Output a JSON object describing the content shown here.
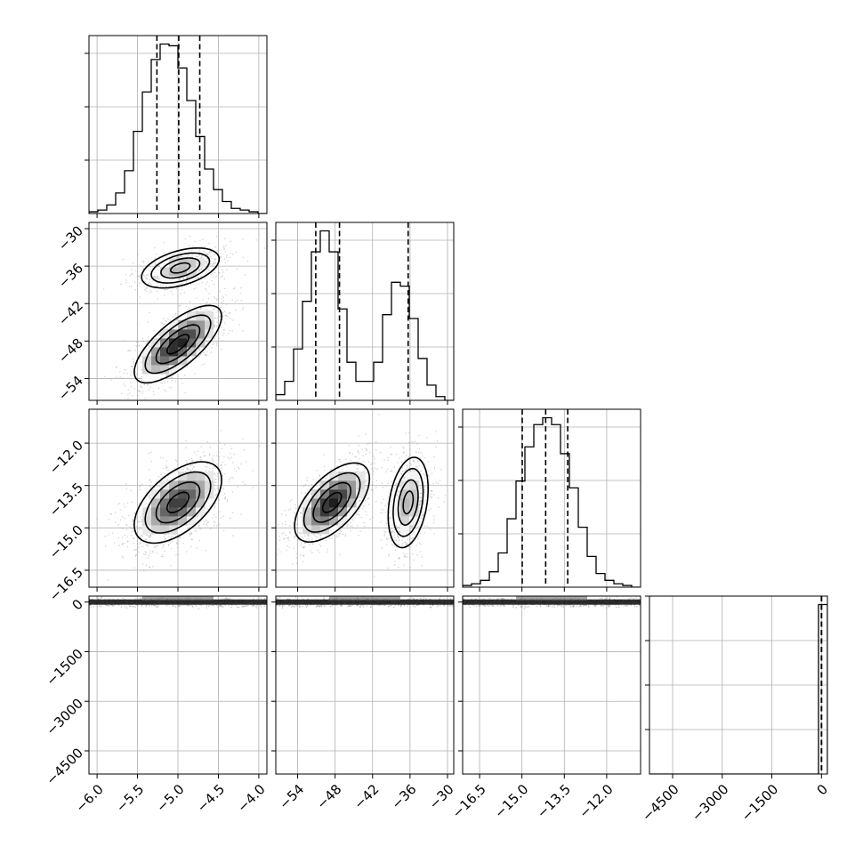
{
  "chart_data": {
    "type": "corner",
    "grid": true,
    "axes_ranges": {
      "p0": [
        -6.1,
        -3.9
      ],
      "p1": [
        -57.5,
        -29.0
      ],
      "p2": [
        -17.1,
        -10.8
      ],
      "p3": [
        -5200,
        180
      ]
    },
    "x_tick_labels": {
      "p0": [
        "−6.0",
        "−5.5",
        "−5.0",
        "−4.5",
        "−4.0"
      ],
      "p1": [
        "−54",
        "−48",
        "−42",
        "−36",
        "−30"
      ],
      "p2": [
        "−16.5",
        "−15.0",
        "−13.5",
        "−12.0"
      ],
      "p3": [
        "−4500",
        "−3000",
        "−1500",
        "0"
      ]
    },
    "y_tick_labels": {
      "p1": [
        "−30",
        "−36",
        "−42",
        "−48",
        "−54"
      ],
      "p2": [
        "−12.0",
        "−13.5",
        "−15.0",
        "−16.5"
      ],
      "p3": [
        "0",
        "−1500",
        "−3000",
        "−4500"
      ]
    },
    "tick_values": {
      "p0": [
        -6.0,
        -5.5,
        -5.0,
        -4.5,
        -4.0
      ],
      "p1": [
        -54,
        -48,
        -42,
        -36,
        -30
      ],
      "p2": [
        -16.5,
        -15.0,
        -13.5,
        -12.0
      ],
      "p3": [
        -4500,
        -3000,
        -1500,
        0
      ]
    },
    "quantiles": {
      "p0": [
        -5.26,
        -4.99,
        -4.73
      ],
      "p1": [
        -51.1,
        -47.3,
        -36.3
      ],
      "p2": [
        -14.99,
        -14.16,
        -13.38
      ],
      "p3": [
        -3,
        0,
        3
      ]
    },
    "histograms": {
      "p0": {
        "range": [
          -6.1,
          -3.9
        ],
        "counts": [
          1,
          2,
          5,
          12,
          25,
          48,
          71,
          90,
          99,
          98,
          85,
          66,
          45,
          26,
          14,
          7,
          3,
          2,
          1,
          0
        ]
      },
      "p1": {
        "range": [
          -57.5,
          -29.0
        ],
        "counts": [
          3,
          10,
          27,
          52,
          78,
          89,
          78,
          48,
          20,
          10,
          10,
          20,
          45,
          62,
          60,
          43,
          22,
          8,
          2,
          0
        ]
      },
      "p2": {
        "range": [
          -17.1,
          -10.8
        ],
        "counts": [
          1,
          2,
          4,
          9,
          20,
          40,
          62,
          82,
          95,
          99,
          95,
          78,
          58,
          35,
          18,
          8,
          4,
          2,
          1,
          0
        ]
      },
      "p3": {
        "range": [
          -5200,
          180
        ],
        "counts": [
          0,
          0,
          0,
          0,
          0,
          0,
          0,
          0,
          0,
          0,
          0,
          0,
          0,
          0,
          0,
          0,
          0,
          0,
          0,
          100
        ]
      }
    },
    "clusters": {
      "p0_p1": [
        {
          "mx": -4.97,
          "my": -36.3,
          "sx": 0.24,
          "sy": 1.6,
          "rho": 0.45,
          "n": 700,
          "peak": 0.45
        },
        {
          "mx": -5.0,
          "my": -48.5,
          "sx": 0.27,
          "sy": 3.1,
          "rho": 0.72,
          "n": 1000,
          "peak": 0.95
        }
      ],
      "p0_p2": [
        {
          "mx": -5.0,
          "my": -14.1,
          "sx": 0.27,
          "sy": 0.72,
          "rho": 0.55,
          "n": 1500,
          "peak": 0.85
        }
      ],
      "p1_p2": [
        {
          "mx": -48.5,
          "my": -14.1,
          "sx": 3.0,
          "sy": 0.7,
          "rho": 0.6,
          "n": 1000,
          "peak": 0.95
        },
        {
          "mx": -36.3,
          "my": -14.1,
          "sx": 1.6,
          "sy": 0.8,
          "rho": 0.3,
          "n": 700,
          "peak": 0.45
        }
      ]
    },
    "p3_samples_center": 0,
    "p3_samples_spread": 40
  }
}
